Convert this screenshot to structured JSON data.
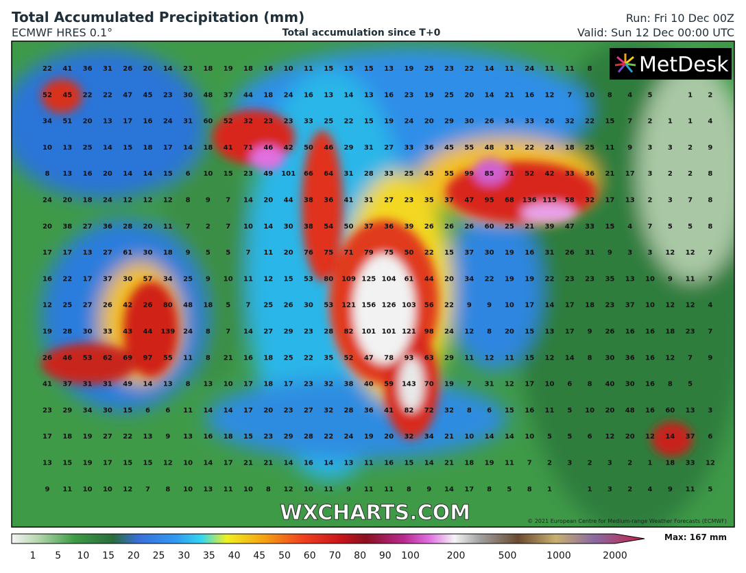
{
  "header": {
    "title": "Total Accumulated Precipitation (mm)",
    "model": "ECMWF HRES 0.1°",
    "subtitle": "Total accumulation since T+0",
    "run": "Run: Fri 10 Dec 00Z",
    "valid": "Valid: Sun 12 Dec 00:00 UTC"
  },
  "logo": "MetDesk",
  "watermark": "WXCHARTS.COM",
  "copyright": "© 2021 European Centre for Medium-range Weather Forecasts (ECMWF)",
  "grid": {
    "rows": [
      [
        22,
        41,
        36,
        31,
        26,
        20,
        14,
        23,
        18,
        19,
        18,
        16,
        10,
        11,
        15,
        15,
        15,
        13,
        19,
        25,
        23,
        22,
        14,
        11,
        24,
        11,
        11,
        8,
        null,
        null,
        null,
        null,
        null,
        null
      ],
      [
        52,
        45,
        22,
        22,
        47,
        45,
        23,
        30,
        48,
        37,
        44,
        18,
        24,
        16,
        13,
        14,
        13,
        16,
        23,
        19,
        25,
        20,
        14,
        21,
        16,
        12,
        7,
        10,
        8,
        4,
        5,
        null,
        1,
        2
      ],
      [
        34,
        51,
        20,
        13,
        17,
        16,
        24,
        31,
        60,
        52,
        32,
        23,
        23,
        33,
        25,
        22,
        15,
        19,
        24,
        20,
        29,
        30,
        26,
        34,
        33,
        26,
        32,
        22,
        15,
        7,
        2,
        1,
        1,
        4
      ],
      [
        10,
        13,
        25,
        14,
        15,
        18,
        17,
        14,
        18,
        41,
        71,
        46,
        42,
        50,
        46,
        29,
        31,
        27,
        33,
        36,
        45,
        55,
        48,
        31,
        22,
        24,
        18,
        25,
        11,
        9,
        3,
        3,
        2,
        9
      ],
      [
        8,
        13,
        16,
        20,
        14,
        14,
        15,
        6,
        10,
        15,
        23,
        49,
        101,
        66,
        64,
        31,
        28,
        33,
        25,
        45,
        55,
        99,
        85,
        71,
        52,
        42,
        33,
        36,
        21,
        17,
        3,
        2,
        2,
        8
      ],
      [
        24,
        20,
        18,
        24,
        12,
        12,
        12,
        8,
        9,
        7,
        14,
        20,
        44,
        38,
        36,
        41,
        31,
        27,
        23,
        35,
        37,
        47,
        95,
        68,
        136,
        115,
        58,
        32,
        17,
        13,
        2,
        3,
        7,
        8
      ],
      [
        20,
        38,
        27,
        36,
        28,
        20,
        11,
        7,
        2,
        7,
        10,
        14,
        30,
        38,
        54,
        50,
        37,
        36,
        39,
        26,
        26,
        26,
        60,
        25,
        21,
        39,
        47,
        33,
        15,
        4,
        7,
        5,
        5,
        8
      ],
      [
        17,
        17,
        13,
        27,
        61,
        30,
        18,
        9,
        5,
        5,
        7,
        11,
        20,
        76,
        75,
        71,
        79,
        75,
        50,
        22,
        15,
        37,
        30,
        19,
        16,
        31,
        26,
        31,
        9,
        3,
        3,
        12,
        12,
        7
      ],
      [
        16,
        22,
        17,
        37,
        30,
        57,
        34,
        25,
        9,
        10,
        11,
        12,
        15,
        53,
        80,
        109,
        125,
        104,
        61,
        44,
        20,
        34,
        22,
        19,
        19,
        22,
        23,
        23,
        35,
        13,
        10,
        9,
        11,
        7
      ],
      [
        12,
        25,
        27,
        26,
        42,
        26,
        80,
        48,
        18,
        5,
        7,
        25,
        26,
        30,
        53,
        121,
        156,
        126,
        103,
        56,
        22,
        9,
        9,
        10,
        17,
        14,
        17,
        18,
        23,
        37,
        10,
        12,
        12,
        4
      ],
      [
        19,
        28,
        30,
        33,
        43,
        44,
        139,
        24,
        8,
        7,
        14,
        27,
        29,
        23,
        28,
        82,
        101,
        101,
        121,
        98,
        24,
        12,
        8,
        20,
        15,
        13,
        17,
        9,
        26,
        16,
        16,
        18,
        23,
        7
      ],
      [
        26,
        46,
        53,
        62,
        69,
        97,
        55,
        11,
        8,
        21,
        16,
        18,
        25,
        22,
        35,
        52,
        47,
        78,
        93,
        63,
        29,
        11,
        12,
        11,
        15,
        12,
        14,
        8,
        30,
        36,
        16,
        12,
        7,
        9
      ],
      [
        41,
        37,
        31,
        31,
        49,
        14,
        13,
        8,
        13,
        10,
        17,
        18,
        17,
        23,
        32,
        38,
        40,
        59,
        143,
        70,
        19,
        7,
        31,
        12,
        17,
        10,
        6,
        8,
        40,
        30,
        16,
        8,
        5,
        null
      ],
      [
        23,
        29,
        34,
        30,
        15,
        6,
        6,
        11,
        14,
        14,
        17,
        20,
        23,
        27,
        32,
        28,
        36,
        41,
        82,
        72,
        32,
        8,
        6,
        15,
        16,
        11,
        5,
        10,
        20,
        48,
        16,
        60,
        13,
        3
      ],
      [
        17,
        18,
        19,
        27,
        22,
        13,
        9,
        13,
        16,
        18,
        15,
        23,
        29,
        28,
        22,
        24,
        19,
        20,
        32,
        34,
        21,
        10,
        14,
        14,
        10,
        5,
        5,
        6,
        12,
        20,
        12,
        14,
        37,
        6
      ],
      [
        13,
        15,
        19,
        17,
        15,
        15,
        12,
        10,
        14,
        17,
        21,
        21,
        14,
        16,
        14,
        13,
        11,
        16,
        15,
        14,
        21,
        18,
        19,
        11,
        7,
        2,
        3,
        2,
        3,
        2,
        1,
        18,
        33,
        12
      ],
      [
        9,
        11,
        10,
        10,
        12,
        7,
        8,
        10,
        13,
        11,
        10,
        8,
        12,
        10,
        11,
        9,
        11,
        11,
        8,
        9,
        14,
        17,
        8,
        5,
        8,
        1,
        null,
        1,
        3,
        2,
        4,
        9,
        11,
        5
      ]
    ]
  },
  "colorbar": {
    "labels": [
      1,
      5,
      10,
      15,
      20,
      25,
      30,
      35,
      40,
      45,
      50,
      60,
      70,
      80,
      90,
      100,
      200,
      500,
      1000,
      2000
    ],
    "max_label": "Max: 167 mm"
  }
}
